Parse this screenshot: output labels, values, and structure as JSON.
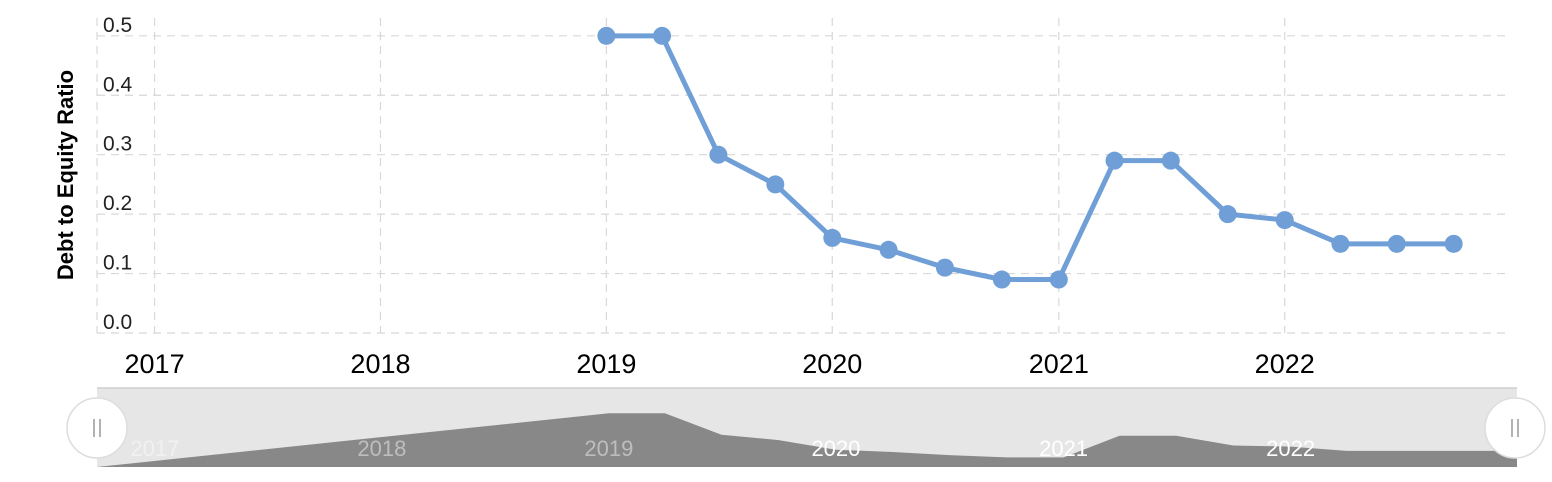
{
  "chart_data": {
    "type": "line",
    "title": "",
    "xlabel": "",
    "ylabel": "Debt to Equity Ratio",
    "xlim": [
      "2016-09-30",
      "2022-12-31"
    ],
    "ylim": [
      0.0,
      0.53
    ],
    "yticks": [
      "0.0",
      "0.1",
      "0.2",
      "0.3",
      "0.4",
      "0.5"
    ],
    "xticks": [
      "2017",
      "2018",
      "2019",
      "2020",
      "2021",
      "2022"
    ],
    "grid": true,
    "legend": "none",
    "series": [
      {
        "color": "#6f9fd6",
        "x": [
          "2019-01-01",
          "2019-04-01",
          "2019-07-01",
          "2019-10-01",
          "2020-01-01",
          "2020-04-01",
          "2020-07-01",
          "2020-10-01",
          "2021-01-01",
          "2021-04-01",
          "2021-07-01",
          "2021-10-01",
          "2022-01-01",
          "2022-04-01",
          "2022-07-01",
          "2022-10-01"
        ],
        "y": [
          0.5,
          0.5,
          0.3,
          0.25,
          0.16,
          0.14,
          0.11,
          0.09,
          0.09,
          0.29,
          0.29,
          0.2,
          0.19,
          0.15,
          0.15,
          0.15
        ]
      }
    ],
    "navigator": {
      "xticks": [
        "2017",
        "2018",
        "2019",
        "2020",
        "2021",
        "2022"
      ],
      "fill_color": "#888888",
      "background_color": "#e6e6e6"
    }
  }
}
